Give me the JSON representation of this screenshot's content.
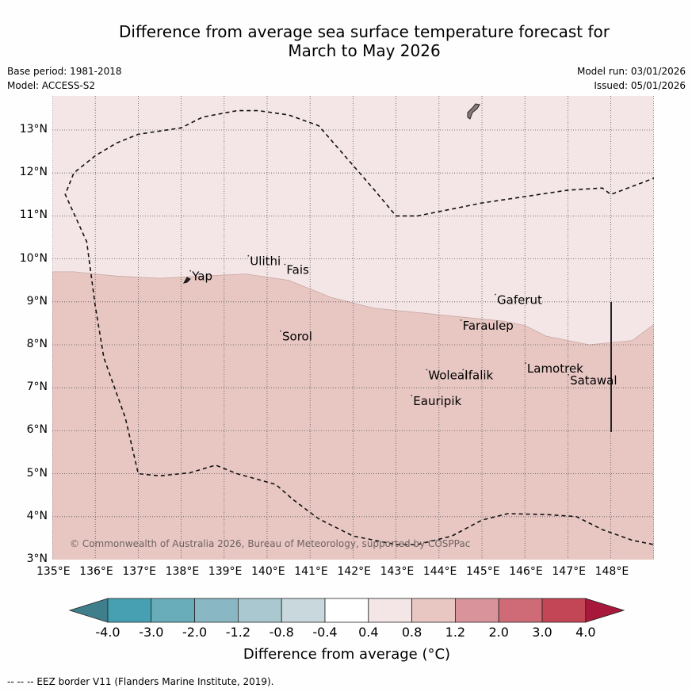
{
  "title_line1": "Difference from average sea surface temperature forecast for",
  "title_line2": "March to May 2026",
  "meta": {
    "base_period": "Base period: 1981-2018",
    "model": "Model: ACCESS-S2",
    "model_run": "Model run: 03/01/2026",
    "issued": "Issued: 05/01/2026"
  },
  "copyright": "© Commonwealth of Australia 2026, Bureau of Meteorology, supported by COSPPac",
  "footer": "-- -- -- EEZ border V11 (Flanders Marine Institute, 2019).",
  "colorbar": {
    "label": "Difference from average (°C)",
    "ticks": [
      "-4.0",
      "-3.0",
      "-2.0",
      "-1.2",
      "-0.8",
      "-0.4",
      "0.4",
      "0.8",
      "1.2",
      "2.0",
      "3.0",
      "4.0"
    ],
    "colors": [
      "#3f7f8c",
      "#46a0b2",
      "#69adbb",
      "#89b8c4",
      "#a9c8cf",
      "#c8d8dc",
      "#ffffff",
      "#f4e6e6",
      "#e8c7c3",
      "#d8949a",
      "#ce6b76",
      "#c24656",
      "#a8183a"
    ]
  },
  "map": {
    "lon_labels": [
      "135°E",
      "136°E",
      "137°E",
      "138°E",
      "139°E",
      "140°E",
      "141°E",
      "142°E",
      "143°E",
      "144°E",
      "145°E",
      "146°E",
      "147°E",
      "148°E"
    ],
    "lat_labels": [
      "3°N",
      "4°N",
      "5°N",
      "6°N",
      "7°N",
      "8°N",
      "9°N",
      "10°N",
      "11°N",
      "12°N",
      "13°N"
    ],
    "fill_high": "#f4e6e6",
    "fill_low": "#e8c7c3",
    "places": [
      {
        "name": "Yap",
        "lon": 138.25,
        "lat": 9.5
      },
      {
        "name": "Ulithi",
        "lon": 139.6,
        "lat": 9.85
      },
      {
        "name": "Fais",
        "lon": 140.45,
        "lat": 9.65
      },
      {
        "name": "Sorol",
        "lon": 140.35,
        "lat": 8.1
      },
      {
        "name": "Gaferut",
        "lon": 145.35,
        "lat": 8.95
      },
      {
        "name": "Faraulep",
        "lon": 144.55,
        "lat": 8.35
      },
      {
        "name": "Woleai",
        "lon": 143.75,
        "lat": 7.2
      },
      {
        "name": "Ifalik",
        "lon": 144.6,
        "lat": 7.2
      },
      {
        "name": "Eauripik",
        "lon": 143.4,
        "lat": 6.6
      },
      {
        "name": "Lamotrek",
        "lon": 146.05,
        "lat": 7.35
      },
      {
        "name": "Satawal",
        "lon": 147.05,
        "lat": 7.08
      }
    ]
  }
}
